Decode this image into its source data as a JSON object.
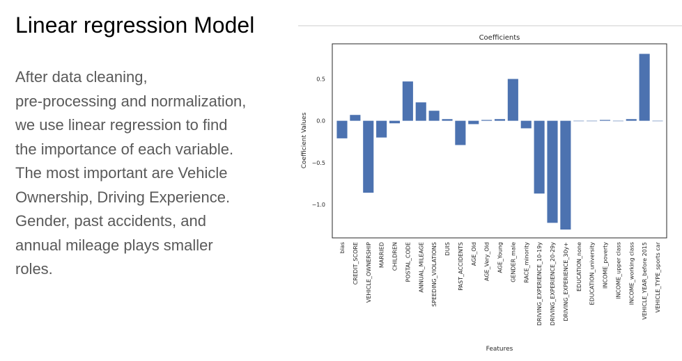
{
  "slide": {
    "title": "Linear regression Model",
    "body_lines": [
      "After data cleaning,",
      "pre-processing and normalization,",
      "we use linear regression to find",
      "the importance of each variable.",
      "The most important are Vehicle",
      "Ownership, Driving Experience.",
      "Gender, past accidents, and",
      "annual mileage plays smaller",
      "roles."
    ]
  },
  "colors": {
    "bar": "#4c72b0",
    "text": "#595959",
    "title": "#000000"
  },
  "chart_data": {
    "type": "bar",
    "title": "Coefficients",
    "xlabel": "Features",
    "ylabel": "Coefficient Values",
    "ylim": [
      -1.4,
      0.92
    ],
    "yticks": [
      0.5,
      0.0,
      -0.5,
      -1.0
    ],
    "ytick_labels": [
      "0.5",
      "0.0",
      "−0.5",
      "−1.0"
    ],
    "grid": false,
    "categories": [
      "bias",
      "CREDIT_SCORE",
      "VEHICLE_OWNERSHIP",
      "MARRIED",
      "CHILDREN",
      "POSTAL_CODE",
      "ANNUAL_MILEAGE",
      "SPEEDING_VIOLATIONS",
      "DUIS",
      "PAST_ACCIDENTS",
      "AGE_Old",
      "AGE_Very_Old",
      "AGE_Young",
      "GENDER_male",
      "RACE_minority",
      "DRIVING_EXPERIENCE_10-19y",
      "DRIVING_EXPERIENCE_20-29y",
      "DRIVING_EXPERIENCE_30y+",
      "EDUCATION_none",
      "EDUCATION_university",
      "INCOME_poverty",
      "INCOME_upper class",
      "INCOME_working class",
      "VEHICLE_YEAR_before 2015",
      "VEHICLE_TYPE_sports car"
    ],
    "values": [
      -0.21,
      0.07,
      -0.86,
      -0.2,
      -0.03,
      0.47,
      0.22,
      0.12,
      0.02,
      -0.29,
      -0.04,
      0.01,
      0.02,
      0.5,
      -0.09,
      -0.87,
      -1.22,
      -1.3,
      0.0,
      0.0,
      0.01,
      0.0,
      0.02,
      0.8,
      0.0
    ]
  }
}
